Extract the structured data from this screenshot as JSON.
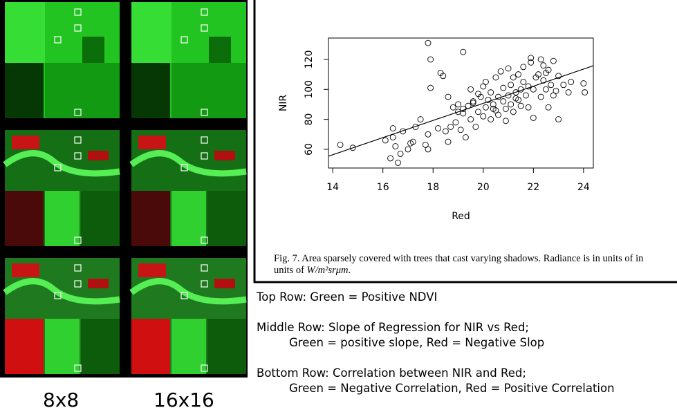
{
  "chart_data": {
    "type": "scatter",
    "xlabel": "Red",
    "ylabel": "NIR",
    "x": [
      14.3,
      14.8,
      16.1,
      16.3,
      16.4,
      16.4,
      16.6,
      16.7,
      16.5,
      16.8,
      17.0,
      17.1,
      17.2,
      17.3,
      17.5,
      17.7,
      17.8,
      17.8,
      17.9,
      17.8,
      18.2,
      18.3,
      18.4,
      18.5,
      18.6,
      18.7,
      18.8,
      18.9,
      19.0,
      19.0,
      19.1,
      19.2,
      19.2,
      19.3,
      19.4,
      19.5,
      19.5,
      19.6,
      19.7,
      19.8,
      19.8,
      19.9,
      20.0,
      20.0,
      20.1,
      20.1,
      20.2,
      20.3,
      20.3,
      20.4,
      20.5,
      20.5,
      20.6,
      20.6,
      20.7,
      20.8,
      20.8,
      20.9,
      21.0,
      21.0,
      21.1,
      21.1,
      21.2,
      21.2,
      21.3,
      21.3,
      21.4,
      21.5,
      21.5,
      21.6,
      21.6,
      21.7,
      21.8,
      21.8,
      21.9,
      22.0,
      22.0,
      22.1,
      22.2,
      22.3,
      22.3,
      22.4,
      22.4,
      22.5,
      22.5,
      22.6,
      22.7,
      22.8,
      22.8,
      22.9,
      23.0,
      23.0,
      23.2,
      23.4,
      23.5,
      24.0,
      24.05,
      19.2,
      20.4,
      21.4,
      20.9,
      19.6,
      18.6,
      17.9,
      21.9,
      22.6
    ],
    "y": [
      63,
      61,
      66,
      54,
      74,
      68,
      51,
      57,
      62,
      72,
      60,
      64,
      65,
      75,
      80,
      63,
      60,
      131,
      120,
      70,
      74,
      111,
      109,
      72,
      95,
      75,
      88,
      78,
      85,
      90,
      73,
      125,
      87,
      68,
      89,
      80,
      100,
      92,
      75,
      85,
      97,
      95,
      82,
      102,
      88,
      105,
      93,
      80,
      98,
      90,
      86,
      108,
      95,
      83,
      112,
      92,
      101,
      87,
      96,
      114,
      90,
      103,
      85,
      108,
      98,
      94,
      110,
      100,
      89,
      115,
      105,
      96,
      102,
      88,
      118,
      100,
      81,
      108,
      110,
      95,
      120,
      106,
      116,
      100,
      111,
      113,
      103,
      119,
      96,
      99,
      80,
      109,
      103,
      98,
      105,
      104,
      98,
      84,
      87,
      93,
      79,
      91,
      65,
      101,
      121,
      88
    ],
    "fit_line": {
      "x": [
        13.83,
        24.39
      ],
      "y": [
        55.4,
        115.8
      ]
    },
    "xlim": [
      13.83,
      24.39
    ],
    "ylim": [
      47.5,
      134.3
    ],
    "xticks": [
      14,
      16,
      18,
      20,
      22,
      24
    ],
    "yticks": [
      60,
      80,
      100,
      120
    ],
    "caption": "Fig. 7.  Area sparsely covered with trees that cast varying shadows. Radiance is in units of in units of ",
    "caption_math": "W/m²srμm",
    "caption_end": "."
  },
  "panels": {
    "columns": [
      "8x8",
      "16x16"
    ]
  },
  "notes": [
    "Top Row: Green = Positive NDVI",
    "Middle Row: Slope of Regression for NIR vs Red;",
    "Green = positive slope, Red = Negative Slop",
    "Bottom Row: Correlation between NIR and Red;",
    "Green = Negative Correlation, Red = Positive Correlation"
  ]
}
